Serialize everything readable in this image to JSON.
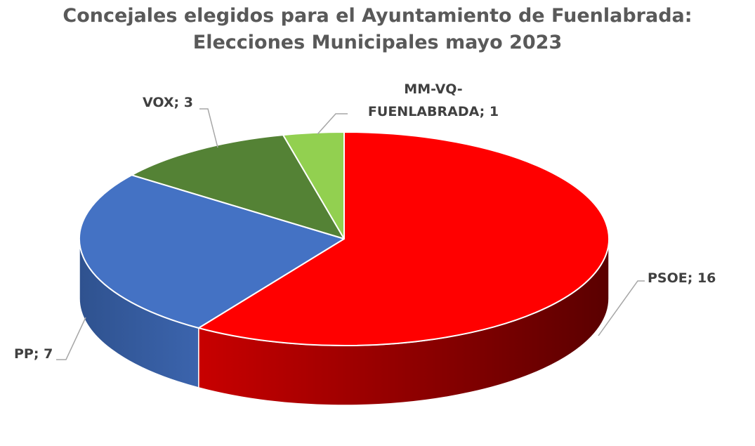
{
  "chart_data": {
    "type": "pie",
    "title_lines": [
      "Concejales elegidos para el Ayuntamiento de Fuenlabrada:",
      "Elecciones Municipales mayo 2023"
    ],
    "slices": [
      {
        "label_lines": [
          "PSOE; 16"
        ],
        "name": "PSOE",
        "value": 16,
        "color": "#FF0000"
      },
      {
        "label_lines": [
          "PP; 7"
        ],
        "name": "PP",
        "value": 7,
        "color": "#4472C4"
      },
      {
        "label_lines": [
          "VOX; 3"
        ],
        "name": "VOX",
        "value": 3,
        "color": "#548235"
      },
      {
        "label_lines": [
          "MM-VQ-",
          "FUENLABRADA; 1"
        ],
        "name": "MM-VQ-FUENLABRADA",
        "value": 1,
        "color": "#92D050"
      }
    ],
    "style": "3d-pie",
    "legend": "none"
  }
}
